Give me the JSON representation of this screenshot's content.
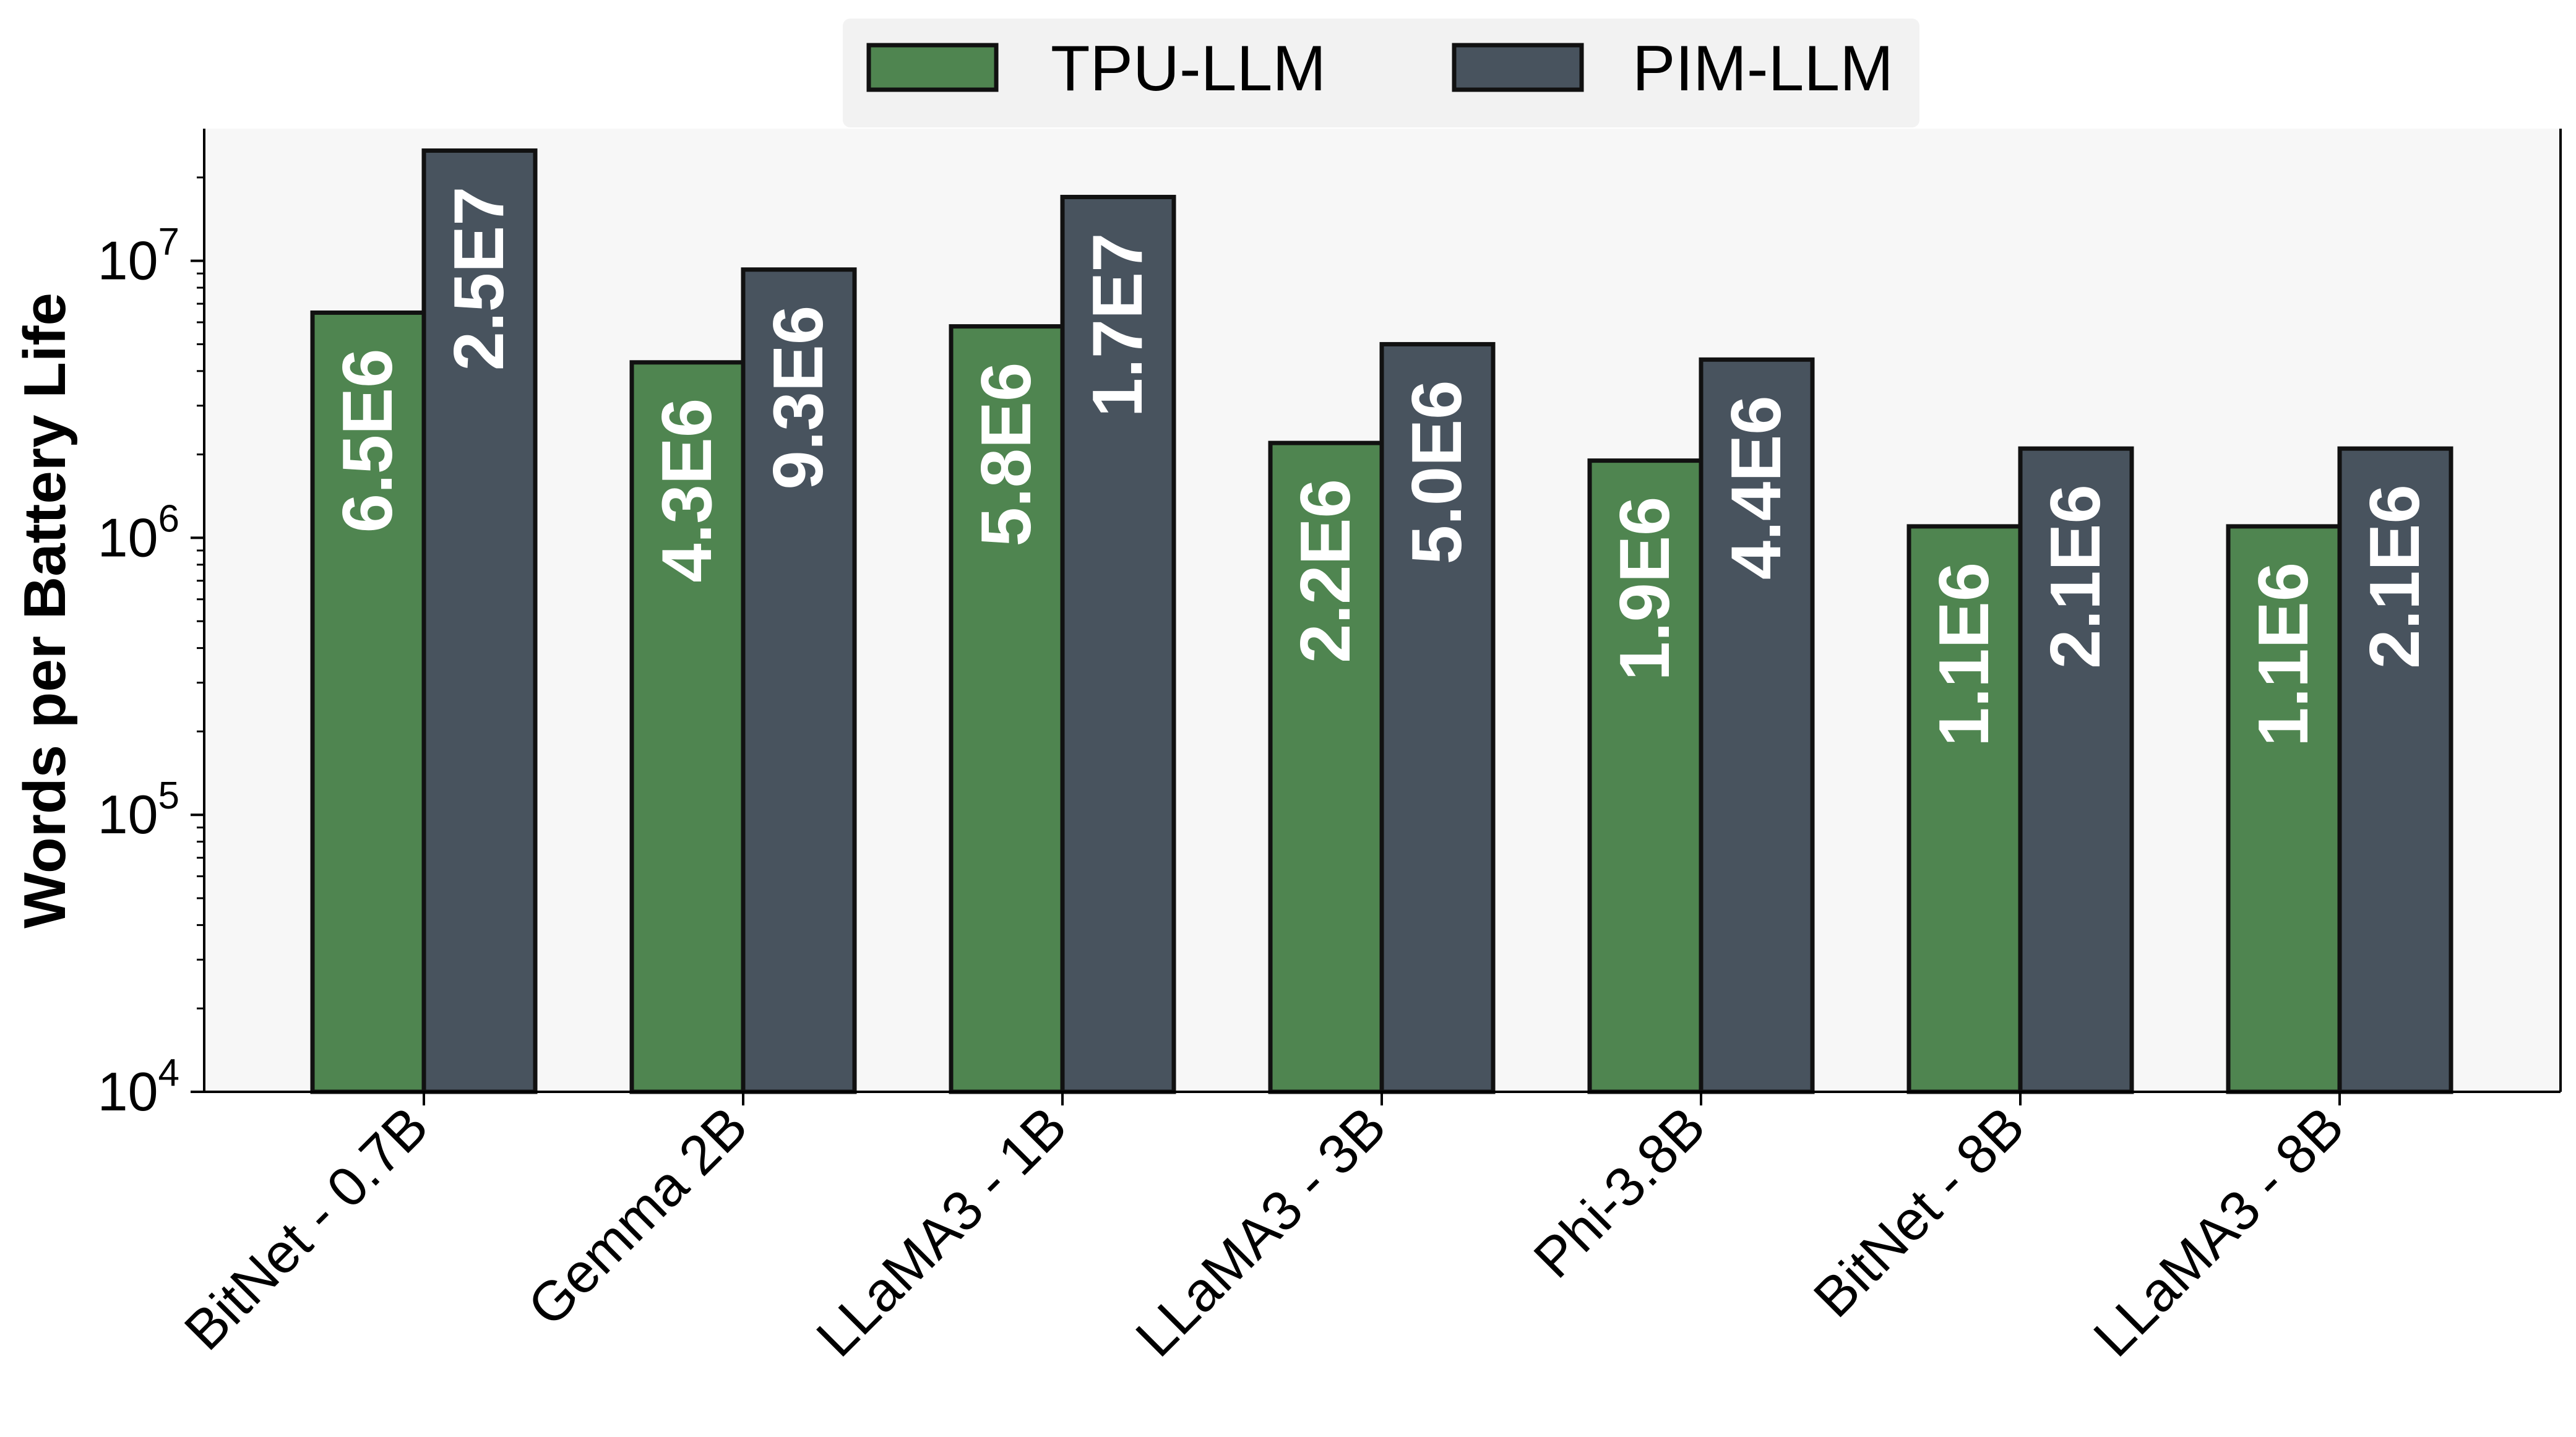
{
  "chart_data": {
    "type": "bar",
    "title": "",
    "xlabel": "",
    "ylabel": "Words per Battery Life",
    "yscale": "log",
    "ylim": [
      10000,
      30000000
    ],
    "yticks": [
      {
        "value": 10000,
        "base": "10",
        "exp": "4"
      },
      {
        "value": 100000,
        "base": "10",
        "exp": "5"
      },
      {
        "value": 1000000,
        "base": "10",
        "exp": "6"
      },
      {
        "value": 10000000,
        "base": "10",
        "exp": "7"
      }
    ],
    "categories": [
      "BitNet - 0.7B",
      "Gemma 2B",
      "LLaMA3 - 1B",
      "LLaMA3 - 3B",
      "Phi-3.8B",
      "BitNet - 8B",
      "LLaMA3 - 8B"
    ],
    "series": [
      {
        "name": "TPU-LLM",
        "color": "#4f8550",
        "values": [
          6500000,
          4300000,
          5800000,
          2200000,
          1900000,
          1100000,
          1100000
        ],
        "labels": [
          "6.5E6",
          "4.3E6",
          "5.8E6",
          "2.2E6",
          "1.9E6",
          "1.1E6",
          "1.1E6"
        ]
      },
      {
        "name": "PIM-LLM",
        "color": "#48535e",
        "values": [
          25000000,
          9300000,
          17000000,
          5000000,
          4400000,
          2100000,
          2100000
        ],
        "labels": [
          "2.5E7",
          "9.3E6",
          "1.7E7",
          "5.0E6",
          "4.4E6",
          "2.1E6",
          "2.1E6"
        ]
      }
    ],
    "legend_position": "top-center",
    "grid": false,
    "plot_background": "#f7f7f7",
    "legend_background": "#f2f2f2"
  }
}
